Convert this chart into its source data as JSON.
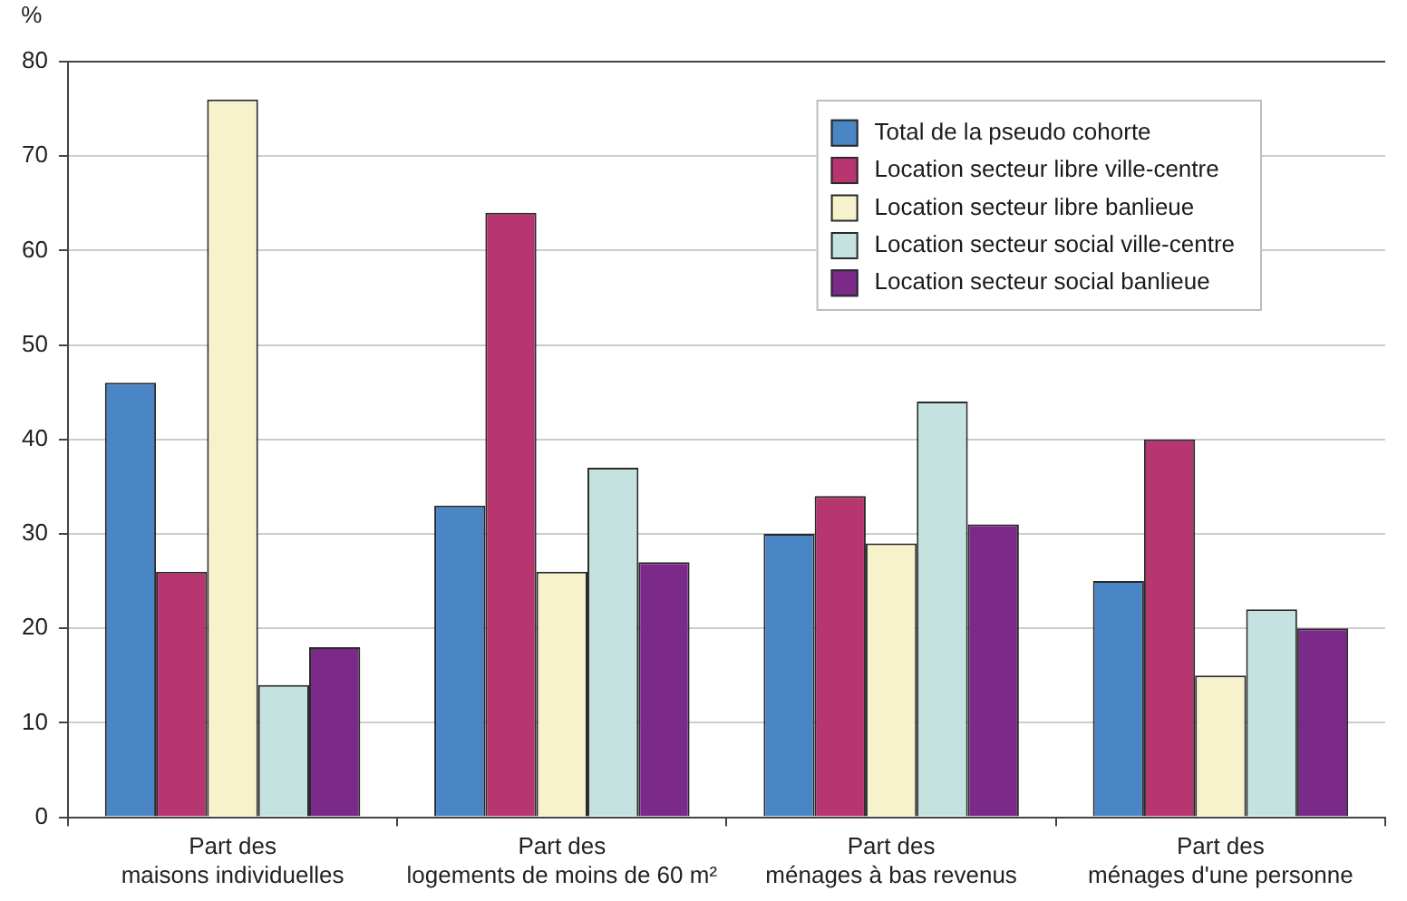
{
  "chart_data": {
    "type": "bar",
    "ylabel": "%",
    "categories": [
      "Part des maisons individuelles",
      "Part des logements de moins de 60 m²",
      "Part des ménages à bas revenus",
      "Part des ménages d'une personne"
    ],
    "series": [
      {
        "name": "Total de la pseudo cohorte",
        "color": "#4a86c6",
        "values": [
          46,
          33,
          30,
          25
        ]
      },
      {
        "name": "Location secteur libre ville-centre",
        "color": "#b8366f",
        "values": [
          26,
          64,
          34,
          40
        ]
      },
      {
        "name": "Location secteur libre banlieue",
        "color": "#f8f2cc",
        "values": [
          76,
          26,
          29,
          15
        ]
      },
      {
        "name": "Location secteur social ville-centre",
        "color": "#c4e3e0",
        "values": [
          14,
          37,
          44,
          22
        ]
      },
      {
        "name": "Location secteur social banlieue",
        "color": "#7b2a8a",
        "values": [
          18,
          27,
          31,
          20
        ]
      }
    ],
    "ylim": [
      0,
      80
    ],
    "yticks": [
      0,
      10,
      20,
      30,
      40,
      50,
      60,
      70,
      80
    ],
    "grid": "y",
    "legend": "top right"
  }
}
